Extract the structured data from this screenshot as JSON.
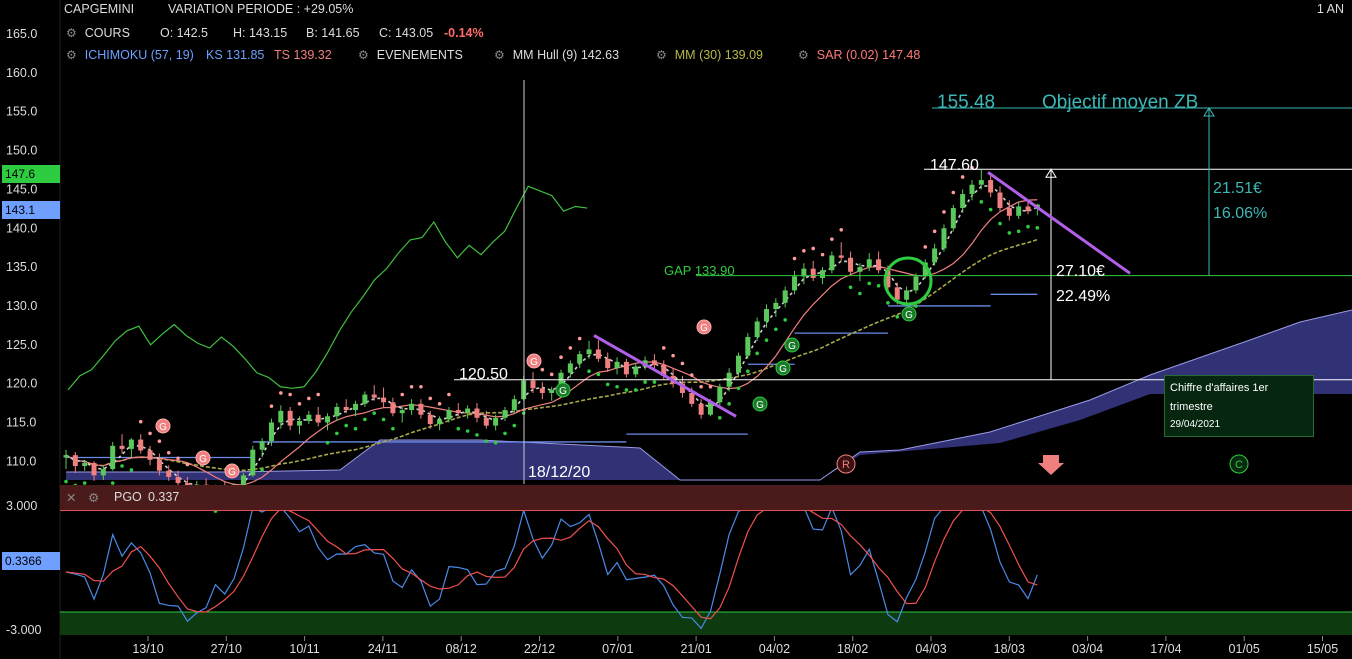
{
  "header": {
    "instrument": "CAPGEMINI",
    "variation": "VARIATION PERIODE : +29.05%",
    "period": "1 AN",
    "cours_label": "COURS",
    "ohlc": {
      "o": "O: 142.5",
      "h": "H: 143.15",
      "b": "B: 141.65",
      "c": "C: 143.05",
      "chg": "-0.14%"
    },
    "ichimoku": "ICHIMOKU (57, 19)",
    "ks": "KS 131.85",
    "ts": "TS 139.32",
    "evenements": "EVENEMENTS",
    "hull": "MM Hull (9) 142.63",
    "mm30": "MM (30) 139.09",
    "sar": "SAR (0.02) 147.48"
  },
  "colors": {
    "up": "#5ac85a",
    "down": "#f08080",
    "hull": "#d0d0d0",
    "mm30": "#a8a84a",
    "ks": "#6a8ae8",
    "ts": "#f08080",
    "cloud": "#3a3a8a",
    "oscillator1": "#4a8ae8",
    "oscillator2": "#f05050",
    "purple": "#b060e8",
    "cyan": "#3cb8b8",
    "green": "#2ecc40"
  },
  "price_axis": {
    "ticks": [
      "165.0",
      "160.0",
      "155.0",
      "150.0",
      "145.0",
      "140.0",
      "135.0",
      "130.0",
      "125.0",
      "120.0",
      "115.0",
      "110.0"
    ],
    "badge_high": "147.6",
    "badge_last": "143.1"
  },
  "pgo_axis": {
    "top": "3.000",
    "bottom": "-3.000",
    "badge": "0.3366"
  },
  "x_axis": {
    "labels": [
      "13/10",
      "27/10",
      "10/11",
      "24/11",
      "08/12",
      "22/12",
      "07/01",
      "21/01",
      "04/02",
      "18/02",
      "04/03",
      "18/03",
      "03/04",
      "17/04",
      "01/05",
      "15/05"
    ]
  },
  "annotations": {
    "target_value": "155.48",
    "target_text": "Objectif moyen ZB",
    "high_level": "147.60",
    "low_level": "120.50",
    "gap": "GAP 133.90",
    "move_amount": "27.10€",
    "move_pct": "22.49%",
    "target_amount": "21.51€",
    "target_pct": "16.06%",
    "crosshair_date": "18/12/20"
  },
  "event_markers": {
    "g": "G",
    "r": "R",
    "c": "C"
  },
  "tooltip": {
    "title": "Chiffre d'affaires 1er trimestre",
    "date": "29/04/2021"
  },
  "pgo": {
    "label": "PGO",
    "value": "0.337"
  },
  "chart_data": {
    "type": "candlestick",
    "title": "CAPGEMINI",
    "ylim": [
      108,
      167
    ],
    "y_ticks": [
      165,
      160,
      155,
      150,
      145,
      140,
      135,
      130,
      125,
      120,
      115,
      110
    ],
    "x_start": "2020-10-01",
    "candles_ohlc": [
      [
        110.5,
        111.5,
        109,
        110.8
      ],
      [
        110.8,
        111.2,
        108.5,
        109.4
      ],
      [
        109.4,
        110.2,
        108.8,
        109.8
      ],
      [
        109.8,
        110,
        107.5,
        108.2
      ],
      [
        108.2,
        109.5,
        107.6,
        109
      ],
      [
        109,
        112.5,
        108.8,
        112
      ],
      [
        112,
        113.5,
        111,
        111.6
      ],
      [
        111.6,
        113,
        110.5,
        112.8
      ],
      [
        112.8,
        113.5,
        111,
        111.4
      ],
      [
        111.4,
        112,
        109.5,
        110.2
      ],
      [
        110.2,
        111,
        108.2,
        108.8
      ],
      [
        108.8,
        109.5,
        107.5,
        108
      ],
      [
        108,
        108.8,
        106.8,
        107.2
      ],
      [
        107.2,
        108,
        106,
        106.5
      ],
      [
        106.5,
        107.5,
        105.8,
        107
      ],
      [
        107,
        107.8,
        105.5,
        106
      ],
      [
        106,
        107,
        105.2,
        106.6
      ],
      [
        106.6,
        107.5,
        105.8,
        106.2
      ],
      [
        106.2,
        107.2,
        105.5,
        107
      ],
      [
        107,
        108.5,
        106.5,
        108.2
      ],
      [
        108.2,
        112,
        108,
        111.5
      ],
      [
        111.5,
        113,
        110.5,
        112.6
      ],
      [
        112.6,
        115.5,
        112,
        115
      ],
      [
        115,
        117.2,
        114.2,
        116.5
      ],
      [
        116.5,
        117,
        114,
        114.6
      ],
      [
        114.6,
        115.8,
        113.5,
        115.2
      ],
      [
        115.2,
        116.5,
        114.8,
        116
      ],
      [
        116,
        117,
        114.5,
        115
      ],
      [
        115,
        116.2,
        114,
        115.8
      ],
      [
        115.8,
        117.5,
        115.2,
        117
      ],
      [
        117,
        118,
        116.2,
        116.6
      ],
      [
        116.6,
        117.8,
        115.8,
        117.4
      ],
      [
        117.4,
        119,
        117,
        118.6
      ],
      [
        118.6,
        119.8,
        117.8,
        118.2
      ],
      [
        118.2,
        119.5,
        117,
        117.6
      ],
      [
        117.6,
        118.2,
        115.8,
        116.2
      ],
      [
        116.2,
        117,
        115,
        116.6
      ],
      [
        116.6,
        118,
        116,
        117.4
      ],
      [
        117.4,
        118,
        115.5,
        116
      ],
      [
        116,
        116.5,
        114.2,
        114.8
      ],
      [
        114.8,
        115.8,
        114,
        115.4
      ],
      [
        115.4,
        117,
        115,
        116.6
      ],
      [
        116.6,
        117.5,
        115.8,
        116.2
      ],
      [
        116.2,
        117.2,
        115.5,
        116.8
      ],
      [
        116.8,
        117.5,
        115,
        115.6
      ],
      [
        115.6,
        116.5,
        114.2,
        114.6
      ],
      [
        114.6,
        116,
        114,
        115.6
      ],
      [
        115.6,
        117,
        115.2,
        116.6
      ],
      [
        116.6,
        118.5,
        116.2,
        118
      ],
      [
        118,
        121,
        117.8,
        120.4
      ],
      [
        120.4,
        121.5,
        118.8,
        119.4
      ],
      [
        119.4,
        120.2,
        118,
        118.8
      ],
      [
        118.8,
        119.6,
        117.8,
        119.2
      ],
      [
        119.2,
        121.8,
        119,
        121.4
      ],
      [
        121.4,
        123,
        120.8,
        122.6
      ],
      [
        122.6,
        124.2,
        122,
        123.8
      ],
      [
        123.8,
        125.5,
        123.2,
        124.4
      ],
      [
        124.4,
        125.6,
        122.8,
        123.2
      ],
      [
        123.2,
        124,
        121.5,
        122
      ],
      [
        122,
        123.4,
        121.2,
        122.8
      ],
      [
        122.8,
        123.2,
        120.8,
        121.2
      ],
      [
        121.2,
        122.6,
        120.8,
        122.2
      ],
      [
        122.2,
        123.5,
        121.8,
        123
      ],
      [
        123,
        123.8,
        121.8,
        122.4
      ],
      [
        122.4,
        123,
        120.6,
        121
      ],
      [
        121,
        122,
        119.5,
        120
      ],
      [
        120,
        121,
        118.2,
        118.8
      ],
      [
        118.8,
        119.5,
        117,
        117.4
      ],
      [
        117.4,
        118,
        115.5,
        116
      ],
      [
        116,
        118,
        115.8,
        117.6
      ],
      [
        117.6,
        120,
        117.2,
        119.6
      ],
      [
        119.6,
        122,
        119,
        121.4
      ],
      [
        121.4,
        124,
        121,
        123.6
      ],
      [
        123.6,
        126.5,
        123.2,
        126
      ],
      [
        126,
        128.5,
        125.5,
        128
      ],
      [
        128,
        130.2,
        127.2,
        129.6
      ],
      [
        129.6,
        131,
        128.6,
        130.4
      ],
      [
        130.4,
        132.5,
        129.8,
        132
      ],
      [
        132,
        134.5,
        131.5,
        133.8
      ],
      [
        133.8,
        135.5,
        132.8,
        134.8
      ],
      [
        134.8,
        135.8,
        133.2,
        133.6
      ],
      [
        133.6,
        135,
        132.8,
        134.6
      ],
      [
        134.6,
        137,
        134.2,
        136.5
      ],
      [
        136.5,
        138.2,
        135.8,
        136.2
      ],
      [
        136.2,
        137,
        134,
        134.4
      ],
      [
        134.4,
        135.5,
        133.2,
        135
      ],
      [
        135,
        136.8,
        134.5,
        136
      ],
      [
        136,
        137,
        134.2,
        134.6
      ],
      [
        134.6,
        135.2,
        132,
        132.4
      ],
      [
        132.4,
        133,
        130.2,
        130.8
      ],
      [
        130.8,
        132.5,
        130.2,
        132
      ],
      [
        132,
        134.2,
        131.6,
        133.8
      ],
      [
        133.8,
        136,
        133.5,
        135.6
      ],
      [
        135.6,
        138,
        135.2,
        137.4
      ],
      [
        137.4,
        140.5,
        137,
        140
      ],
      [
        140,
        143,
        139.6,
        142.6
      ],
      [
        142.6,
        145,
        142,
        144.4
      ],
      [
        144.4,
        146.2,
        143.6,
        145.6
      ],
      [
        145.6,
        147.6,
        145,
        146.2
      ],
      [
        146.2,
        146.8,
        144,
        144.6
      ],
      [
        144.6,
        145.4,
        142.2,
        142.6
      ],
      [
        142.6,
        143.6,
        141,
        141.6
      ],
      [
        141.6,
        143.4,
        141.2,
        142.8
      ],
      [
        142.8,
        143.4,
        141.8,
        142.2
      ],
      [
        142.5,
        143.15,
        141.65,
        143.05
      ]
    ],
    "comparison_line": [
      119.2,
      121,
      121.8,
      123.6,
      125.5,
      126.8,
      127.4,
      125,
      126.4,
      127.6,
      126.2,
      125.2,
      124.6,
      126,
      124.8,
      123.2,
      121.4,
      120.8,
      119.6,
      119.4,
      119.6,
      121.5,
      124,
      126.8,
      129.2,
      131.2,
      133.4,
      134.8,
      136.8,
      138.5,
      138.8,
      140.8,
      138.2,
      136.2,
      137.8,
      136.6,
      138.2,
      139.6,
      142.6,
      145.4,
      144.8,
      144.2,
      142.2,
      142.8,
      142.6
    ],
    "ks": [
      {
        "from": 0,
        "to": 20,
        "v": 110.5
      },
      {
        "from": 20,
        "to": 48,
        "v": 112.5
      },
      {
        "from": 48,
        "to": 60,
        "v": 112.5
      },
      {
        "from": 60,
        "to": 73,
        "v": 113.5
      },
      {
        "from": 73,
        "to": 78,
        "v": 122.5
      },
      {
        "from": 78,
        "to": 88,
        "v": 126.5
      },
      {
        "from": 88,
        "to": 99,
        "v": 130
      },
      {
        "from": 99,
        "to": 104,
        "v": 131.5
      }
    ],
    "pgo_value": 0.337,
    "pgo_range": [
      -3,
      3
    ],
    "levels": {
      "target": 155.48,
      "high": 147.6,
      "gap": 133.9,
      "low": 120.5
    }
  }
}
